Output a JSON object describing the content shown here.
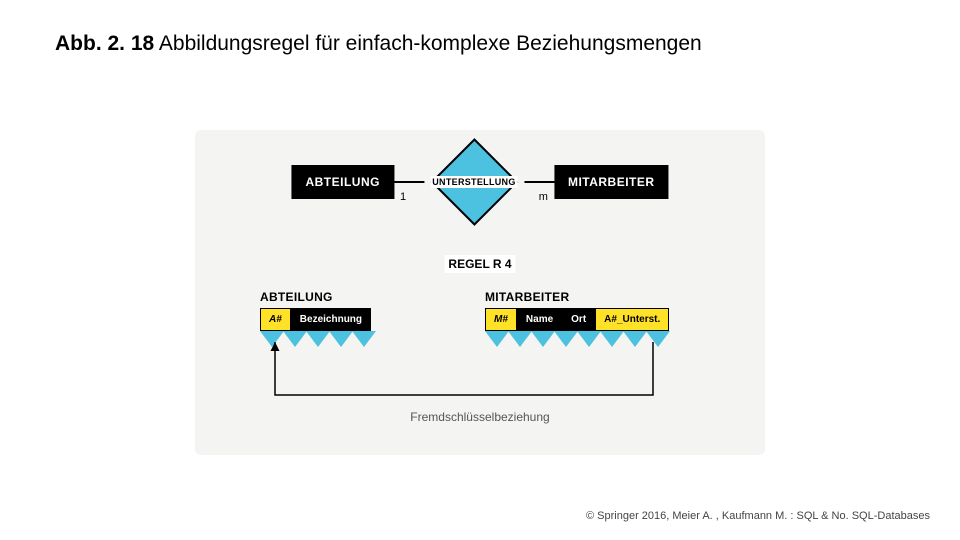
{
  "title": {
    "prefix": "Abb. 2. 18",
    "rest": " Abbildungsregel für einfach-komplexe Beziehungsmengen"
  },
  "er": {
    "entity_left": "ABTEILUNG",
    "entity_right": "MITARBEITER",
    "relationship": "UNTERSTELLUNG",
    "card_left": "1",
    "card_right": "m"
  },
  "rule_label": "REGEL R 4",
  "tables": {
    "left": {
      "title": "ABTEILUNG",
      "cols": [
        {
          "label": "A#",
          "style": "yellow",
          "italic": true
        },
        {
          "label": "Bezeichnung",
          "style": "black"
        }
      ],
      "zigzag_count": 5
    },
    "right": {
      "title": "MITARBEITER",
      "cols": [
        {
          "label": "M#",
          "style": "yellow",
          "italic": true
        },
        {
          "label": "Name",
          "style": "black"
        },
        {
          "label": "Ort",
          "style": "black"
        },
        {
          "label": "A#_Unterst.",
          "style": "yellow"
        }
      ],
      "zigzag_count": 8
    }
  },
  "fk_label": "Fremdschlüsselbeziehung",
  "copyright": "© Springer 2016, Meier A. , Kaufmann M. : SQL & No. SQL-Databases",
  "colors": {
    "blue": "#4cc1e0",
    "yellow": "#ffe127",
    "panel_bg": "#f4f4f2"
  }
}
